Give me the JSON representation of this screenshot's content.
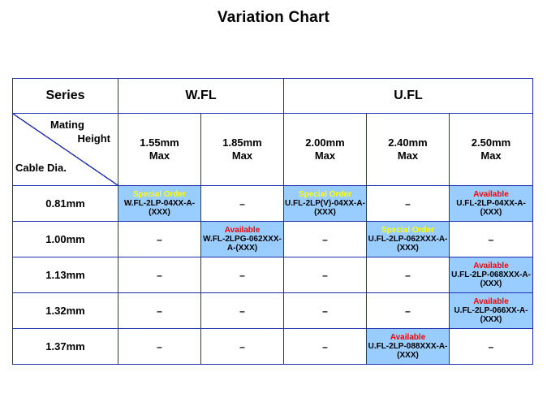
{
  "title": "Variation Chart",
  "table": {
    "series_label": "Series",
    "wfl_label": "W.FL",
    "ufl_label": "U.FL",
    "corner": {
      "mating": "Mating",
      "height": "Height",
      "cable": "Cable Dia."
    },
    "heights": [
      {
        "value": "1.55mm",
        "max": "Max"
      },
      {
        "value": "1.85mm",
        "max": "Max"
      },
      {
        "value": "2.00mm",
        "max": "Max"
      },
      {
        "value": "2.40mm",
        "max": "Max"
      },
      {
        "value": "2.50mm",
        "max": "Max"
      }
    ],
    "rows": [
      {
        "dia": "0.81mm",
        "cells": [
          {
            "status": "Special Order",
            "part": "W.FL-2LP-04XX-A-(XXX)"
          },
          {
            "dash": "–"
          },
          {
            "status": "Special Order",
            "part": "U.FL-2LP(V)-04XX-A-(XXX)"
          },
          {
            "dash": "–"
          },
          {
            "status": "Available",
            "part": "U.FL-2LP-04XX-A-(XXX)"
          }
        ]
      },
      {
        "dia": "1.00mm",
        "cells": [
          {
            "dash": "–"
          },
          {
            "status": "Available",
            "part": "W.FL-2LPG-062XXX-A-(XXX)"
          },
          {
            "dash": "–"
          },
          {
            "status": "Special Order",
            "part": "U.FL-2LP-062XXX-A-(XXX)"
          },
          {
            "dash": "–"
          }
        ]
      },
      {
        "dia": "1.13mm",
        "cells": [
          {
            "dash": "–"
          },
          {
            "dash": "–"
          },
          {
            "dash": "–"
          },
          {
            "dash": "–"
          },
          {
            "status": "Available",
            "part": "U.FL-2LP-068XXX-A-(XXX)"
          }
        ]
      },
      {
        "dia": "1.32mm",
        "cells": [
          {
            "dash": "–"
          },
          {
            "dash": "–"
          },
          {
            "dash": "–"
          },
          {
            "dash": "–"
          },
          {
            "status": "Available",
            "part": "U.FL-2LP-066XX-A-(XXX)"
          }
        ]
      },
      {
        "dia": "1.37mm",
        "cells": [
          {
            "dash": "–"
          },
          {
            "dash": "–"
          },
          {
            "dash": "–"
          },
          {
            "status": "Available",
            "part": "U.FL-2LP-088XXX-A-(XXX)"
          },
          {
            "dash": "–"
          }
        ]
      }
    ]
  },
  "colors": {
    "border": "#1f2fb0",
    "highlight_bg": "#99ccff",
    "special_order": "#ffff00",
    "available": "#ff0000"
  }
}
